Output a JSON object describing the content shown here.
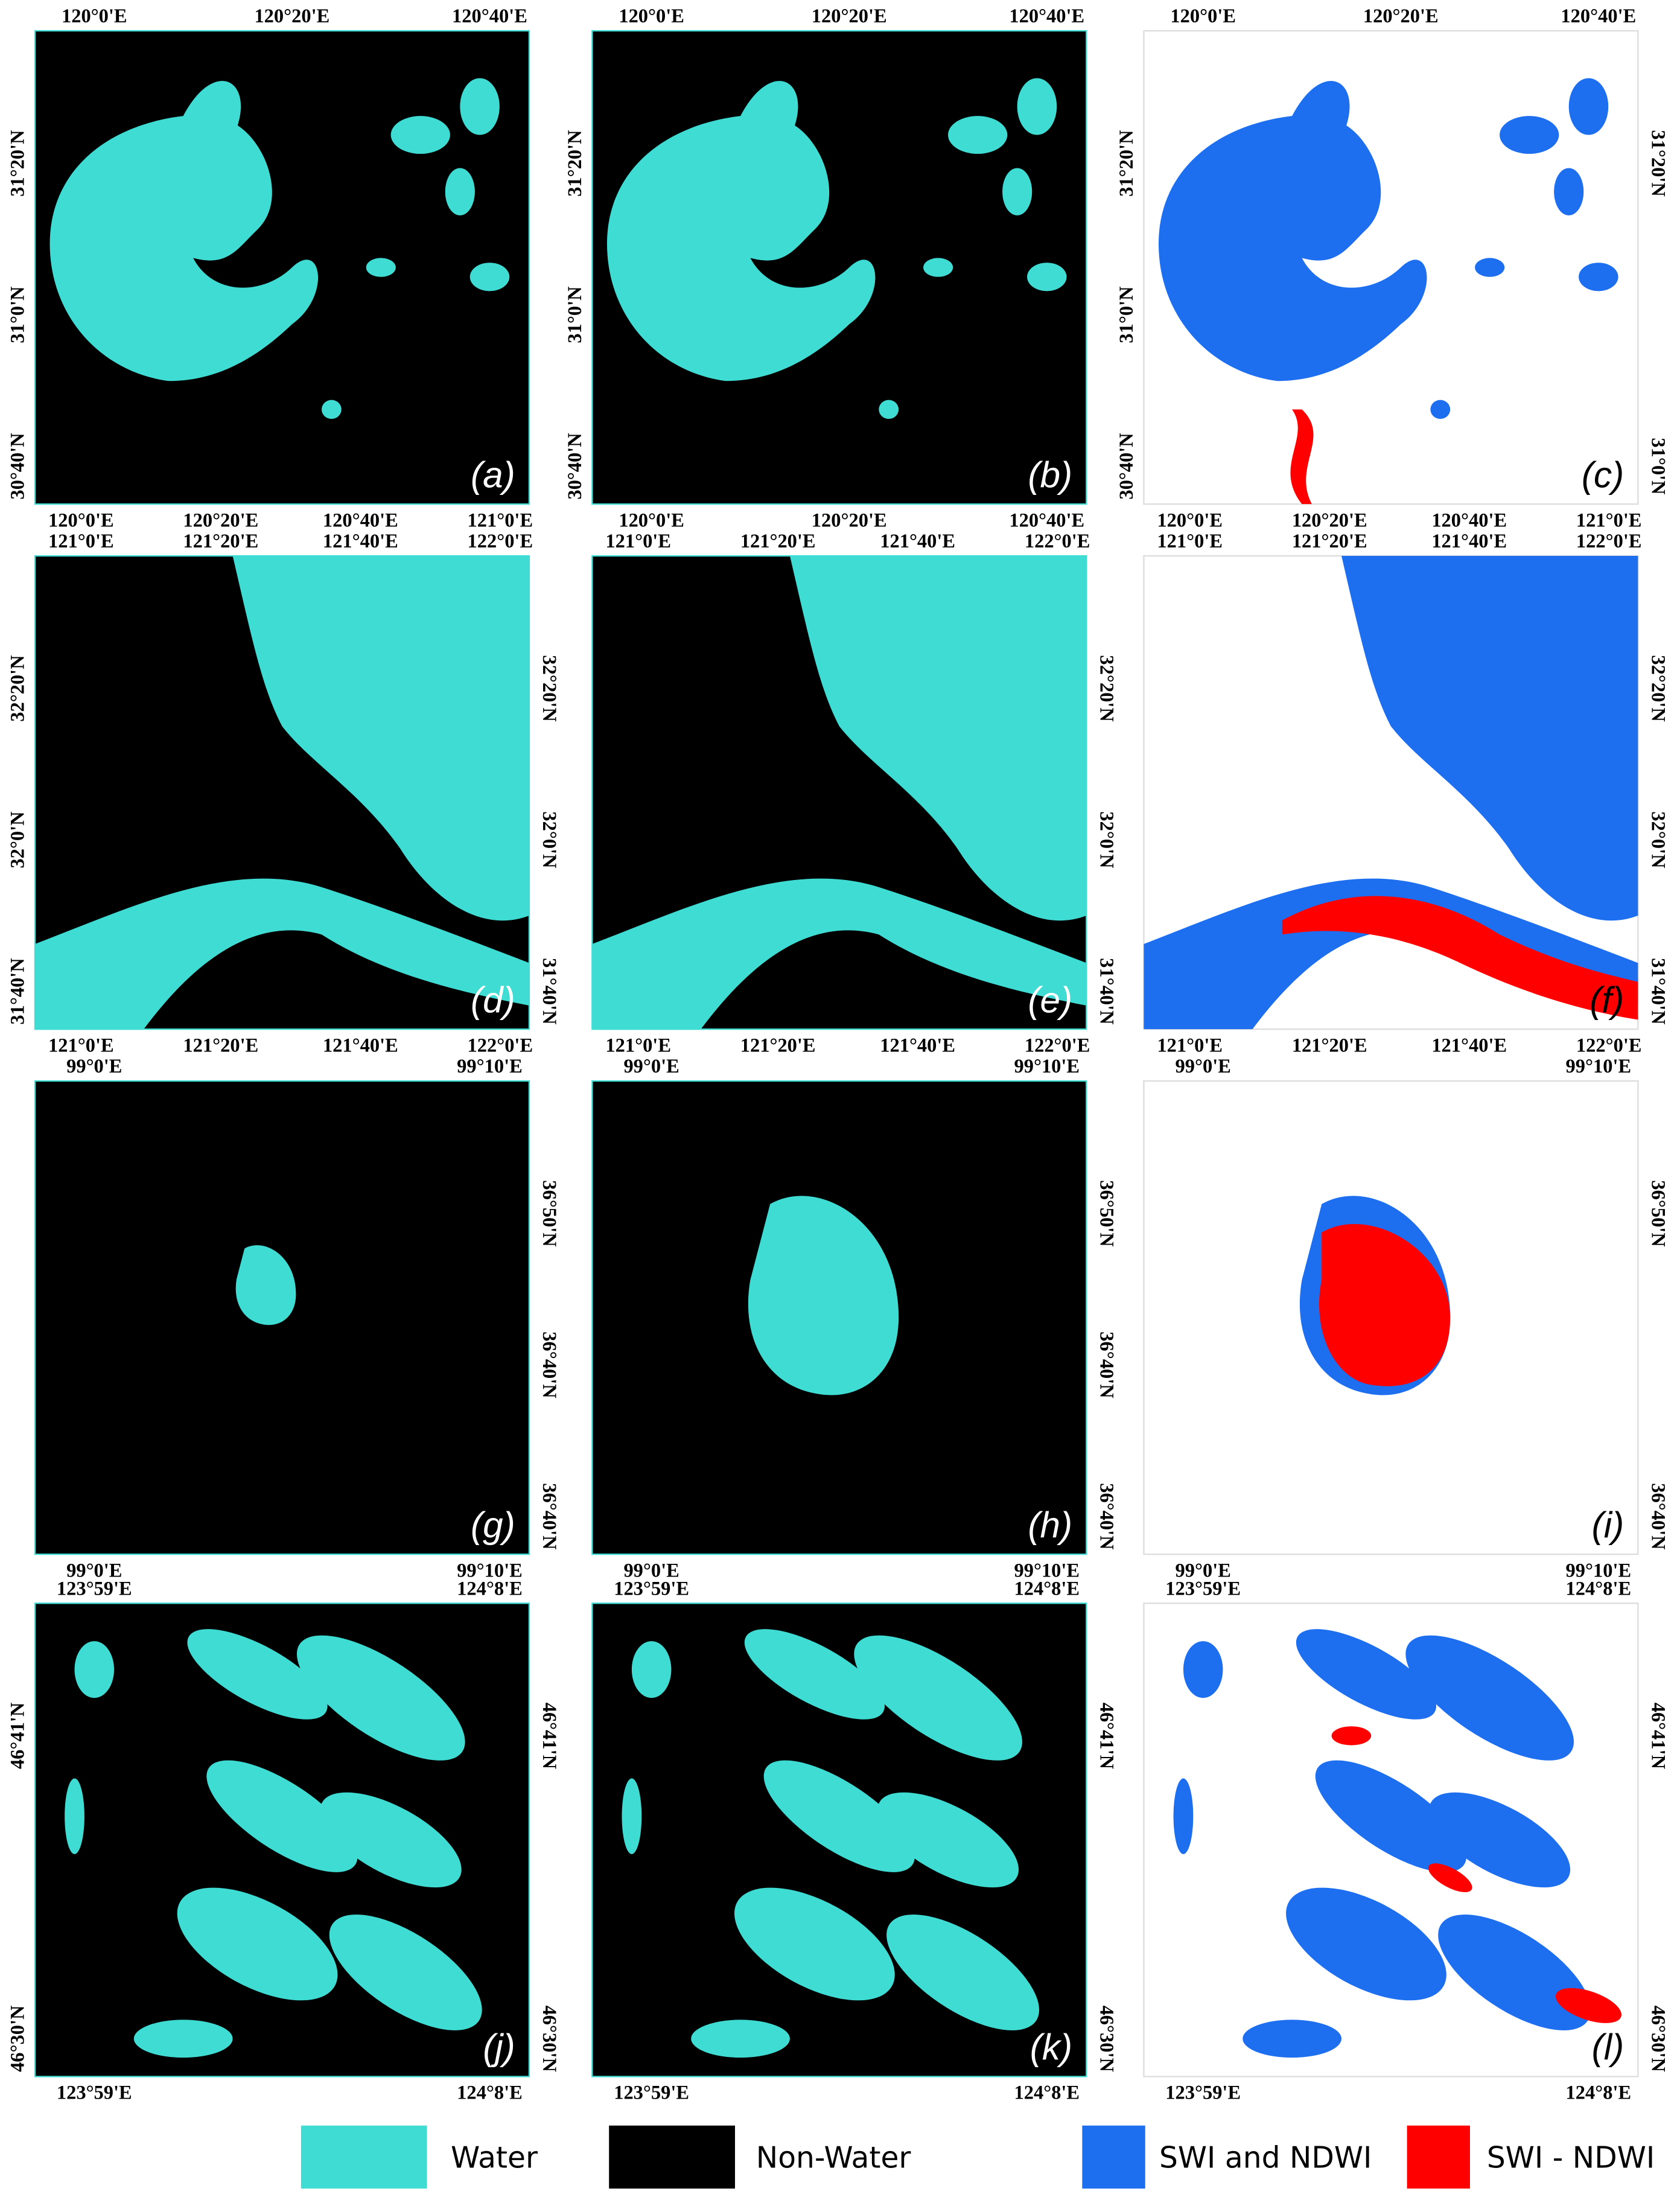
{
  "panels": [
    {
      "label": "(a)",
      "top_ticks": [
        "120°0'E",
        "120°20'E",
        "120°40'E"
      ],
      "bottom_ticks": [
        "120°0'E",
        "120°20'E",
        "120°40'E",
        "121°0'E"
      ],
      "left_ticks": [
        "31°20'N",
        "31°0'N",
        "30°40'N"
      ],
      "right_ticks": []
    },
    {
      "label": "(b)",
      "top_ticks": [
        "120°0'E",
        "120°20'E",
        "120°40'E"
      ],
      "bottom_ticks": [
        "120°0'E",
        "120°20'E",
        "120°40'E"
      ],
      "left_ticks": [
        "31°20'N",
        "31°0'N",
        "30°40'N"
      ],
      "right_ticks": []
    },
    {
      "label": "(c)",
      "top_ticks": [
        "120°0'E",
        "120°20'E",
        "120°40'E"
      ],
      "bottom_ticks": [
        "120°0'E",
        "120°20'E",
        "120°40'E",
        "121°0'E"
      ],
      "left_ticks": [
        "31°20'N",
        "31°0'N",
        "30°40'N"
      ],
      "right_ticks": [
        "31°20'N",
        "31°0'N"
      ]
    },
    {
      "label": "(d)",
      "top_ticks": [
        "121°0'E",
        "121°20'E",
        "121°40'E",
        "122°0'E"
      ],
      "bottom_ticks": [
        "121°0'E",
        "121°20'E",
        "121°40'E",
        "122°0'E"
      ],
      "left_ticks": [
        "32°20'N",
        "32°0'N",
        "31°40'N"
      ],
      "right_ticks": [
        "32°20'N",
        "32°0'N",
        "31°40'N"
      ]
    },
    {
      "label": "(e)",
      "top_ticks": [
        "121°0'E",
        "121°20'E",
        "121°40'E",
        "122°0'E"
      ],
      "bottom_ticks": [
        "121°0'E",
        "121°20'E",
        "121°40'E",
        "122°0'E"
      ],
      "left_ticks": [],
      "right_ticks": [
        "32°20'N",
        "32°0'N",
        "31°40'N"
      ]
    },
    {
      "label": "(f)",
      "top_ticks": [
        "121°0'E",
        "121°20'E",
        "121°40'E",
        "122°0'E"
      ],
      "bottom_ticks": [
        "121°0'E",
        "121°20'E",
        "121°40'E",
        "122°0'E"
      ],
      "left_ticks": [],
      "right_ticks": [
        "32°20'N",
        "32°0'N",
        "31°40'N"
      ]
    },
    {
      "label": "(g)",
      "top_ticks": [
        "99°0'E",
        "99°10'E"
      ],
      "bottom_ticks": [
        "99°0'E",
        "99°10'E"
      ],
      "left_ticks": [],
      "right_ticks": [
        "36°50'N",
        "36°40'N",
        "36°40'N"
      ]
    },
    {
      "label": "(h)",
      "top_ticks": [
        "99°0'E",
        "99°10'E"
      ],
      "bottom_ticks": [
        "99°0'E",
        "99°10'E"
      ],
      "left_ticks": [],
      "right_ticks": [
        "36°50'N",
        "36°40'N",
        "36°40'N"
      ]
    },
    {
      "label": "(i)",
      "top_ticks": [
        "99°0'E",
        "99°10'E"
      ],
      "bottom_ticks": [
        "99°0'E",
        "99°10'E"
      ],
      "left_ticks": [],
      "right_ticks": [
        "36°50'N",
        "36°40'N"
      ]
    },
    {
      "label": "(j)",
      "top_ticks": [
        "123°59'E",
        "124°8'E"
      ],
      "bottom_ticks": [
        "123°59'E",
        "124°8'E"
      ],
      "left_ticks": [
        "46°41'N",
        "46°30'N"
      ],
      "right_ticks": [
        "46°41'N",
        "46°30'N"
      ]
    },
    {
      "label": "(k)",
      "top_ticks": [
        "123°59'E",
        "124°8'E"
      ],
      "bottom_ticks": [
        "123°59'E",
        "124°8'E"
      ],
      "left_ticks": [],
      "right_ticks": [
        "46°41'N",
        "46°30'N"
      ]
    },
    {
      "label": "(l)",
      "top_ticks": [
        "123°59'E",
        "124°8'E"
      ],
      "bottom_ticks": [
        "123°59'E",
        "124°8'E"
      ],
      "left_ticks": [],
      "right_ticks": [
        "46°41'N",
        "46°30'N"
      ]
    }
  ],
  "legend": [
    {
      "label": "Water",
      "color": "#3fdcd4"
    },
    {
      "label": "Non-Water",
      "color": "#000000"
    },
    {
      "label": "SWI and NDWI",
      "color": "#1e6ff0"
    },
    {
      "label": "SWI - NDWI",
      "color": "#ff0000"
    }
  ]
}
